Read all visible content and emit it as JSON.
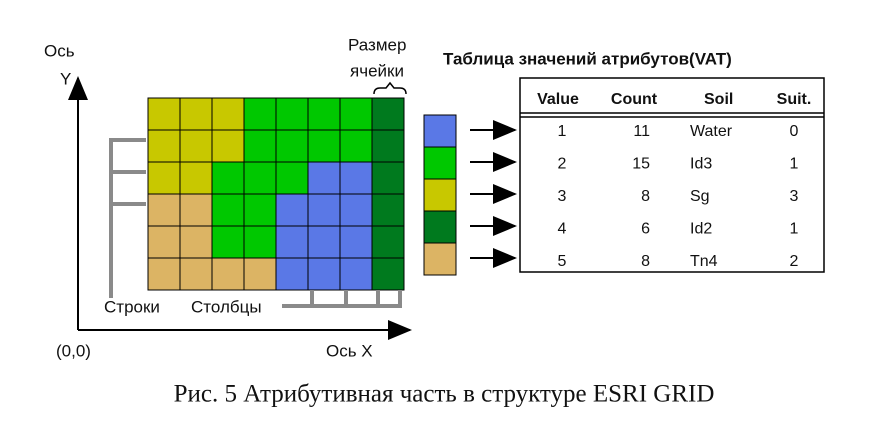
{
  "axis_y": [
    "Ось",
    "Y"
  ],
  "axis_x": "Ось X",
  "origin": "(0,0)",
  "cell_size": [
    "Размер",
    "ячейки"
  ],
  "rows_label": "Строки",
  "cols_label": "Столбцы",
  "table": {
    "title": "Таблица значений атрибутов(VAT)",
    "header": [
      "Value",
      "Count",
      "Soil",
      "Suit."
    ],
    "rows": [
      [
        1,
        11,
        "Water",
        0
      ],
      [
        2,
        15,
        "Id3",
        1
      ],
      [
        3,
        8,
        "Sg",
        3
      ],
      [
        4,
        6,
        "Id2",
        1
      ],
      [
        5,
        8,
        "Tn4",
        2
      ]
    ]
  },
  "caption": "Рис. 5 Атрибутивная часть в структуре ESRI GRID"
}
